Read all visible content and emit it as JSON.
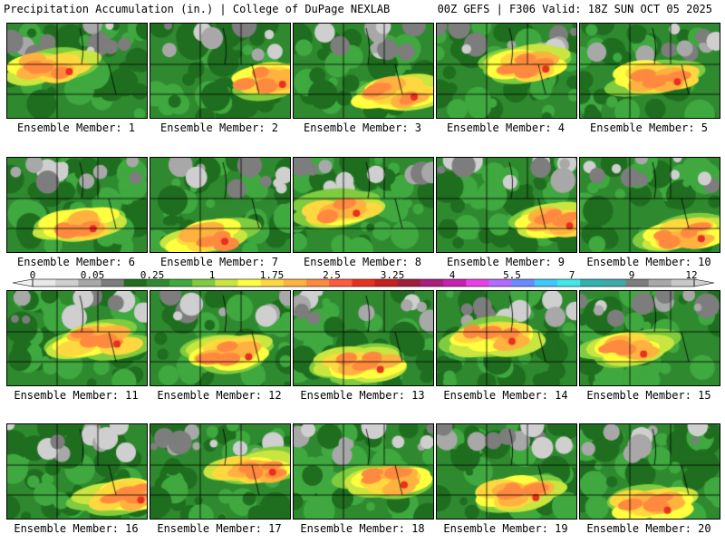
{
  "header": {
    "left": "Precipitation Accumulation (in.) | College of DuPage NEXLAB",
    "right": "00Z GEFS | F306 Valid: 18Z SUN OCT 05 2025"
  },
  "panels": [
    {
      "label": "Ensemble Member: 1"
    },
    {
      "label": "Ensemble Member: 2"
    },
    {
      "label": "Ensemble Member: 3"
    },
    {
      "label": "Ensemble Member: 4"
    },
    {
      "label": "Ensemble Member: 5"
    },
    {
      "label": "Ensemble Member: 6"
    },
    {
      "label": "Ensemble Member: 7"
    },
    {
      "label": "Ensemble Member: 8"
    },
    {
      "label": "Ensemble Member: 9"
    },
    {
      "label": "Ensemble Member: 10"
    },
    {
      "label": "Ensemble Member: 11"
    },
    {
      "label": "Ensemble Member: 12"
    },
    {
      "label": "Ensemble Member: 13"
    },
    {
      "label": "Ensemble Member: 14"
    },
    {
      "label": "Ensemble Member: 15"
    },
    {
      "label": "Ensemble Member: 16"
    },
    {
      "label": "Ensemble Member: 17"
    },
    {
      "label": "Ensemble Member: 18"
    },
    {
      "label": "Ensemble Member: 19"
    },
    {
      "label": "Ensemble Member: 20"
    }
  ],
  "colorbar": {
    "tick_labels": [
      "0",
      "0.05",
      "0.25",
      "1",
      "1.75",
      "2.5",
      "3.25",
      "4",
      "5.5",
      "7",
      "9",
      "12"
    ],
    "colors": [
      "#e8e8e8",
      "#cfcfcf",
      "#a8a8a8",
      "#7d7d7d",
      "#1f6e1f",
      "#2f8a2f",
      "#3fa83f",
      "#7fcc3f",
      "#c8e63f",
      "#ffff3f",
      "#ffd83f",
      "#ffb23f",
      "#ff8a3f",
      "#ff5a3f",
      "#e8301f",
      "#c81f1f",
      "#a01f3f",
      "#a81f7f",
      "#c81fb2",
      "#e83fe8",
      "#b26aff",
      "#6a8aff",
      "#3fc8ff",
      "#3fe8e8",
      "#2fb2b2",
      "#3fa8a8",
      "#7d7d7d",
      "#a8a8a8",
      "#c8c8c8"
    ]
  }
}
